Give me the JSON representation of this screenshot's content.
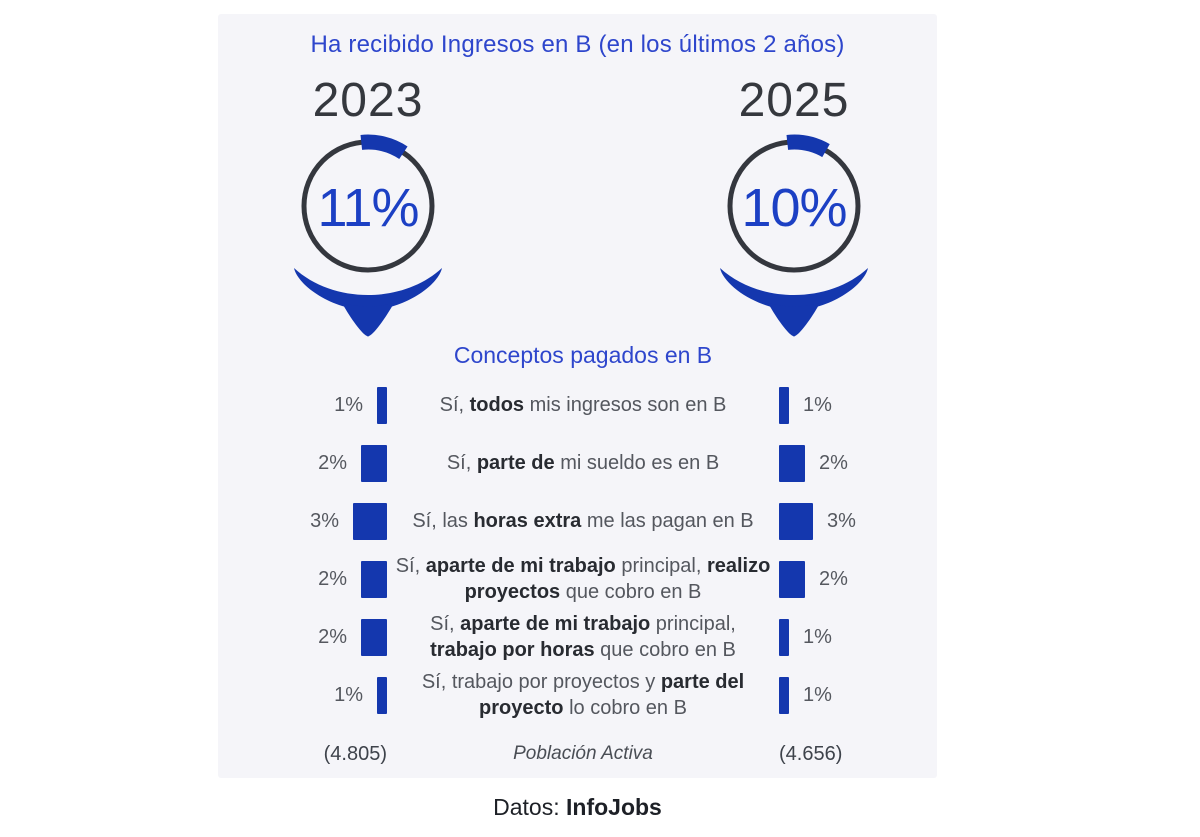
{
  "title": "Ha recibido Ingresos en B (en los últimos 2 años)",
  "source": {
    "label": "Datos:",
    "name": "InfoJobs"
  },
  "colors": {
    "accent": "#1437ae",
    "accent_text": "#1c40c4",
    "title_blue": "#2e46cc",
    "ring": "#34373e",
    "panel_bg": "#f5f5f9"
  },
  "gauges": [
    {
      "year": "2023",
      "value": "11%",
      "percent": 11,
      "population": "(4.805)"
    },
    {
      "year": "2025",
      "value": "10%",
      "percent": 10,
      "population": "(4.656)"
    }
  ],
  "section": {
    "heading": "Conceptos pagados en B",
    "footer_center": "Población Activa",
    "rows": [
      {
        "left": "1%",
        "left_pct": 1,
        "right": "1%",
        "right_pct": 1,
        "segments": [
          {
            "t": "Sí, "
          },
          {
            "t": "todos",
            "b": true
          },
          {
            "t": " mis ingresos son en B"
          }
        ]
      },
      {
        "left": "2%",
        "left_pct": 2,
        "right": "2%",
        "right_pct": 2,
        "segments": [
          {
            "t": "Sí, "
          },
          {
            "t": "parte de",
            "b": true
          },
          {
            "t": " mi sueldo es en B"
          }
        ]
      },
      {
        "left": "3%",
        "left_pct": 3,
        "right": "3%",
        "right_pct": 3,
        "segments": [
          {
            "t": "Sí, las "
          },
          {
            "t": "horas extra",
            "b": true
          },
          {
            "t": " me las pagan en B"
          }
        ]
      },
      {
        "left": "2%",
        "left_pct": 2,
        "right": "2%",
        "right_pct": 2,
        "segments": [
          {
            "t": "Sí, "
          },
          {
            "t": "aparte de mi trabajo",
            "b": true
          },
          {
            "t": " principal, "
          },
          {
            "t": "realizo proyectos",
            "b": true
          },
          {
            "t": " que cobro en B"
          }
        ]
      },
      {
        "left": "2%",
        "left_pct": 2,
        "right": "1%",
        "right_pct": 1,
        "segments": [
          {
            "t": "Sí, "
          },
          {
            "t": "aparte de mi trabajo",
            "b": true
          },
          {
            "t": " principal, "
          },
          {
            "t": "trabajo por horas",
            "b": true
          },
          {
            "t": " que cobro en B"
          }
        ]
      },
      {
        "left": "1%",
        "left_pct": 1,
        "right": "1%",
        "right_pct": 1,
        "segments": [
          {
            "t": "Sí, trabajo por proyectos y "
          },
          {
            "t": "parte del proyecto",
            "b": true
          },
          {
            "t": " lo cobro en B"
          }
        ]
      }
    ]
  },
  "chart_data": {
    "type": "bar",
    "title": "Ha recibido Ingresos en B (en los últimos 2 años)",
    "subtitle": "Conceptos pagados en B",
    "categories": [
      "Sí, todos mis ingresos son en B",
      "Sí, parte de mi sueldo es en B",
      "Sí, las horas extra me las pagan en B",
      "Sí, aparte de mi trabajo principal, realizo proyectos que cobro en B",
      "Sí, aparte de mi trabajo principal, trabajo por horas que cobro en B",
      "Sí, trabajo por proyectos y parte del proyecto lo cobro en B"
    ],
    "series": [
      {
        "name": "2023",
        "total_percent": 11,
        "population": "(4.805)",
        "values": [
          1,
          2,
          3,
          2,
          2,
          1
        ]
      },
      {
        "name": "2025",
        "total_percent": 10,
        "population": "(4.656)",
        "values": [
          1,
          2,
          3,
          2,
          1,
          1
        ]
      }
    ],
    "value_unit": "%",
    "footer": "Población Activa",
    "source": "Datos: InfoJobs",
    "legend_position": "top",
    "grid": false
  }
}
